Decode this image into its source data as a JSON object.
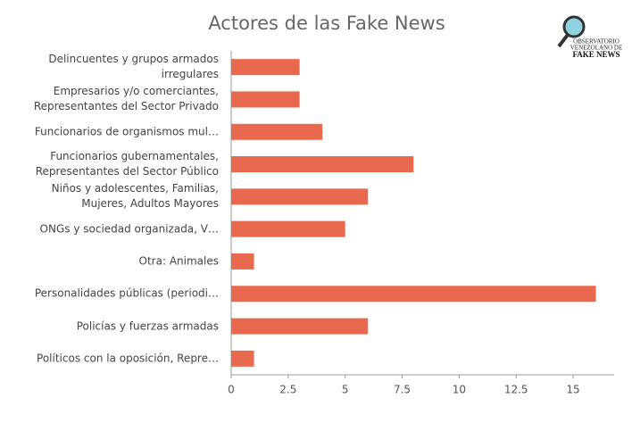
{
  "chart_data": {
    "type": "bar",
    "orientation": "horizontal",
    "title": "Actores de las Fake News",
    "categories": [
      "Delincuentes y grupos armados irregulares",
      "Empresarios y/o comerciantes, Representantes del Sector Privado",
      "Funcionarios de organismos mul…",
      "Funcionarios gubernamentales, Representantes del Sector Público",
      "Niños y adolescentes, Familias, Mujeres, Adultos Mayores",
      "ONGs y sociedad organizada, V…",
      "Otra: Animales",
      "Personalidades públicas (periodi…",
      "Policías y fuerzas armadas",
      "Políticos con la oposición, Repre…"
    ],
    "values": [
      3,
      3,
      4,
      8,
      6,
      5,
      1,
      16,
      6,
      1
    ],
    "color": "#e8694e",
    "xlim": [
      0,
      16.8
    ],
    "xticks": [
      0,
      2.5,
      5,
      7.5,
      10,
      12.5,
      15
    ],
    "logo": [
      "OBSERVATORIO",
      "VENEZOLANO DE",
      "FAKE NEWS"
    ]
  }
}
